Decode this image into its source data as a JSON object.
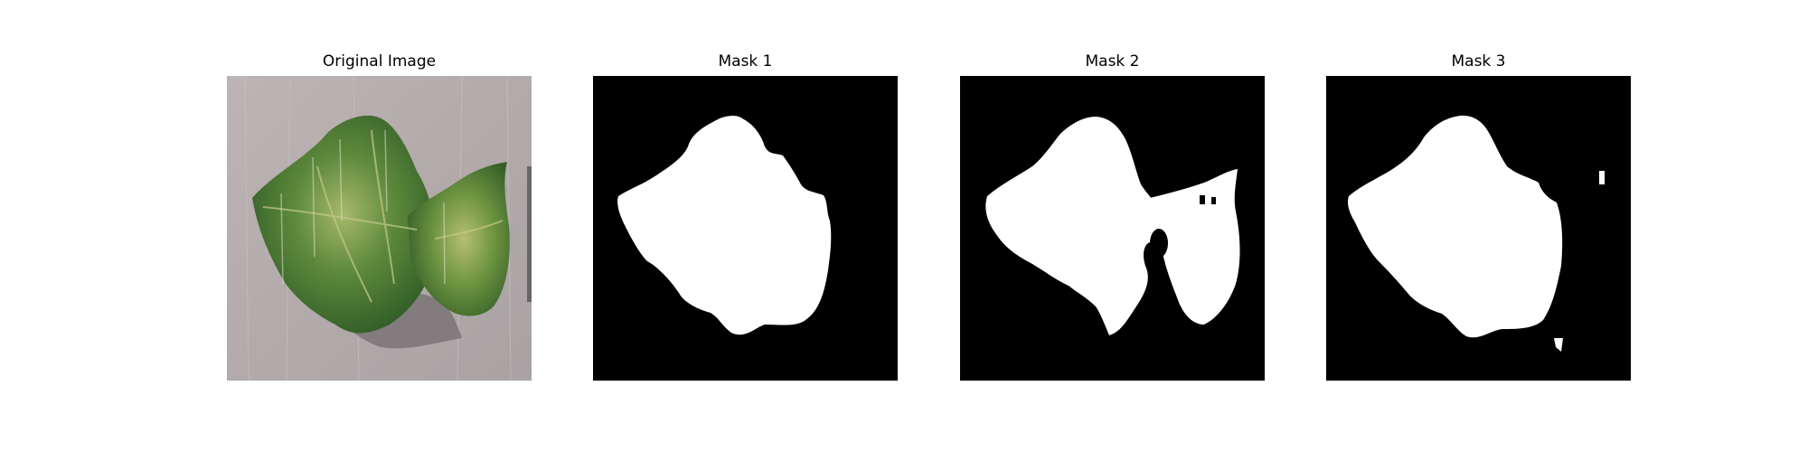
{
  "figure": {
    "panels": [
      {
        "title": "Original Image",
        "kind": "photo",
        "subject": "leaf-on-grey-background"
      },
      {
        "title": "Mask 1",
        "kind": "binary-mask"
      },
      {
        "title": "Mask 2",
        "kind": "binary-mask"
      },
      {
        "title": "Mask 3",
        "kind": "binary-mask"
      }
    ]
  },
  "colors": {
    "mask_background": "#000000",
    "mask_foreground": "#ffffff",
    "photo_background": "#b5aeae",
    "leaf_dark": "#3d6b2e",
    "leaf_mid": "#5e8a3c",
    "leaf_light": "#a7b86a"
  }
}
